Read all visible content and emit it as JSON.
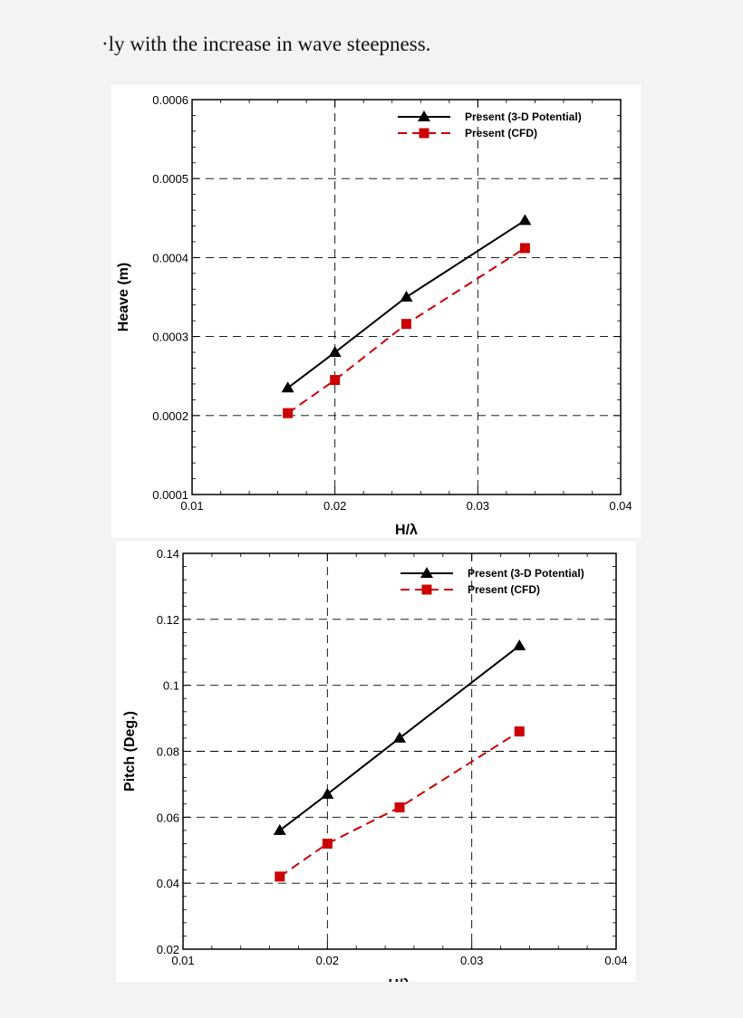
{
  "caption": "·ly with the increase in wave steepness.",
  "colors": {
    "potential": "#000000",
    "cfd": "#cc0000",
    "grid": "#000000"
  },
  "chart_data": [
    {
      "type": "line",
      "title": "",
      "xlabel": "H/λ",
      "ylabel": "Heave (m)",
      "xlim": [
        0.01,
        0.04
      ],
      "ylim": [
        0.0001,
        0.0006
      ],
      "x_ticks": [
        "0.01",
        "0.02",
        "0.03",
        "0.04"
      ],
      "y_ticks": [
        "0.0001",
        "0.0002",
        "0.0003",
        "0.0004",
        "0.0005",
        "0.0006"
      ],
      "grid": true,
      "legend_position": "top-right",
      "series": [
        {
          "name": "Present (3-D Potential)",
          "marker": "triangle",
          "line": "solid",
          "color": "#000000",
          "x": [
            0.0167,
            0.02,
            0.025,
            0.0333
          ],
          "y": [
            0.000235,
            0.00028,
            0.00035,
            0.000447
          ]
        },
        {
          "name": "Present (CFD)",
          "marker": "square",
          "line": "dashed",
          "color": "#cc0000",
          "x": [
            0.0167,
            0.02,
            0.025,
            0.0333
          ],
          "y": [
            0.000203,
            0.000245,
            0.000316,
            0.000412
          ]
        }
      ]
    },
    {
      "type": "line",
      "title": "",
      "xlabel": "H/λ",
      "ylabel": "Pitch (Deg.)",
      "xlim": [
        0.01,
        0.04
      ],
      "ylim": [
        0.02,
        0.14
      ],
      "x_ticks": [
        "0.01",
        "0.02",
        "0.03",
        "0.04"
      ],
      "y_ticks": [
        "0.02",
        "0.04",
        "0.06",
        "0.08",
        "0.1",
        "0.12",
        "0.14"
      ],
      "grid": true,
      "legend_position": "top-right",
      "series": [
        {
          "name": "Present (3-D Potential)",
          "marker": "triangle",
          "line": "solid",
          "color": "#000000",
          "x": [
            0.0167,
            0.02,
            0.025,
            0.0333
          ],
          "y": [
            0.056,
            0.067,
            0.084,
            0.112
          ]
        },
        {
          "name": "Present (CFD)",
          "marker": "square",
          "line": "dashed",
          "color": "#cc0000",
          "x": [
            0.0167,
            0.02,
            0.025,
            0.0333
          ],
          "y": [
            0.042,
            0.052,
            0.063,
            0.086
          ]
        }
      ]
    }
  ]
}
